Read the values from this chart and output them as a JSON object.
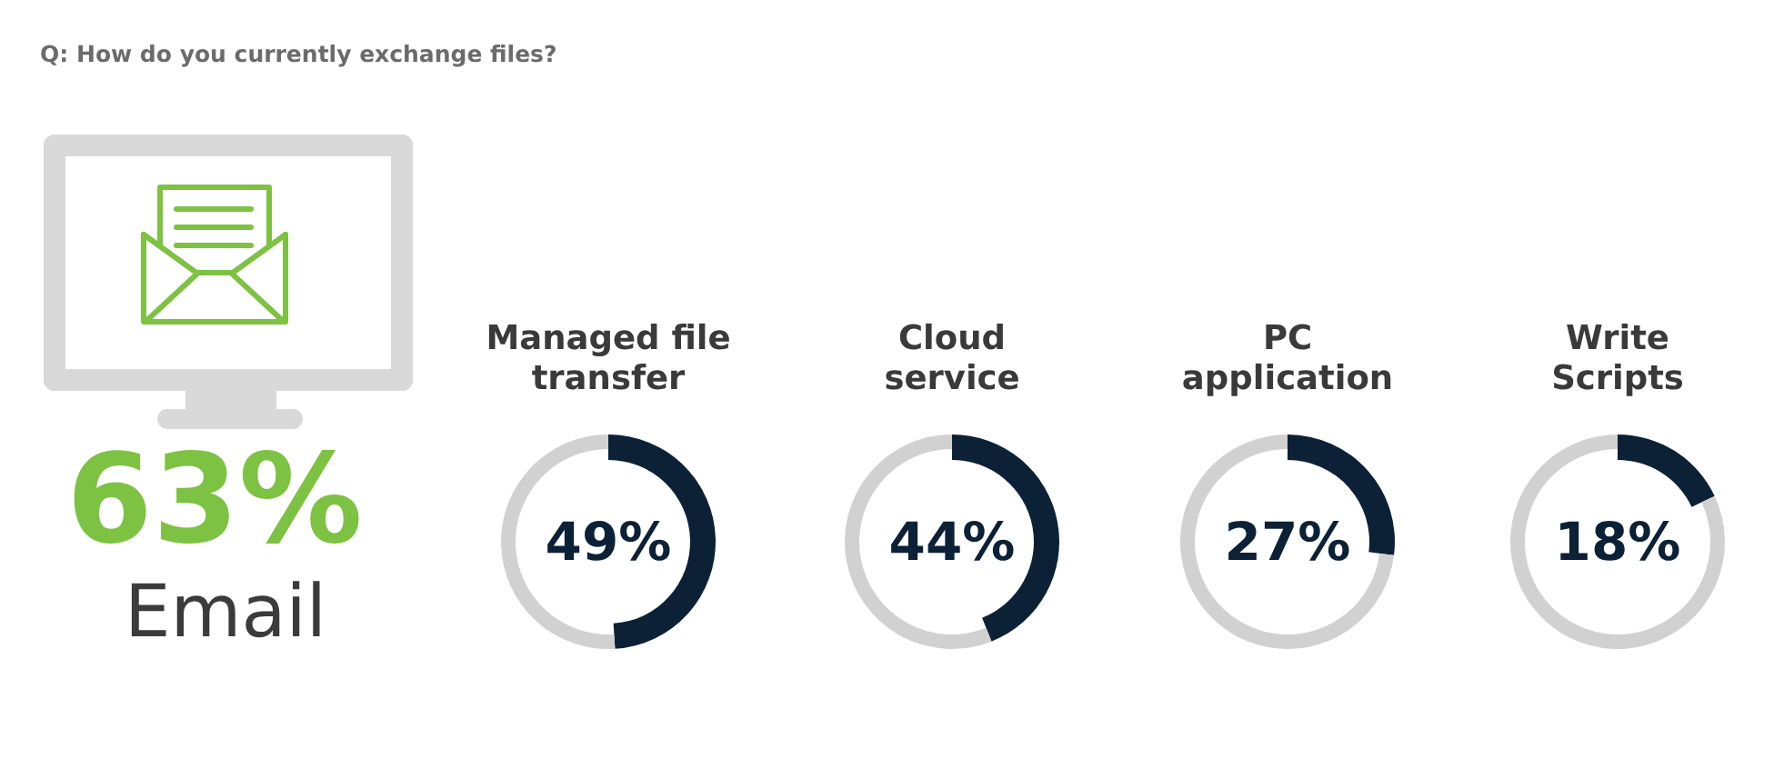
{
  "chart_data": [
    {
      "type": "other",
      "title": "Q: How do you currently exchange files?",
      "annotations": [
        "63%",
        "Email"
      ]
    },
    {
      "type": "donut",
      "title": "Managed file transfer",
      "categories": [
        null,
        null
      ],
      "values": [
        49,
        51
      ],
      "colors": [
        "#0c2136",
        "#d1d1d1"
      ],
      "annotations": [
        "49%"
      ]
    },
    {
      "type": "donut",
      "title": "Cloud service",
      "categories": [
        null,
        null
      ],
      "values": [
        44,
        56
      ],
      "colors": [
        "#0c2136",
        "#d1d1d1"
      ],
      "annotations": [
        "44%"
      ]
    },
    {
      "type": "donut",
      "title": "PC application",
      "categories": [
        null,
        null
      ],
      "values": [
        27,
        73
      ],
      "colors": [
        "#0c2136",
        "#d1d1d1"
      ],
      "annotations": [
        "27%"
      ]
    },
    {
      "type": "donut",
      "title": "Write Scripts",
      "categories": [
        null,
        null
      ],
      "values": [
        18,
        82
      ],
      "colors": [
        "#0c2136",
        "#d1d1d1"
      ],
      "annotations": [
        "18%"
      ]
    }
  ]
}
